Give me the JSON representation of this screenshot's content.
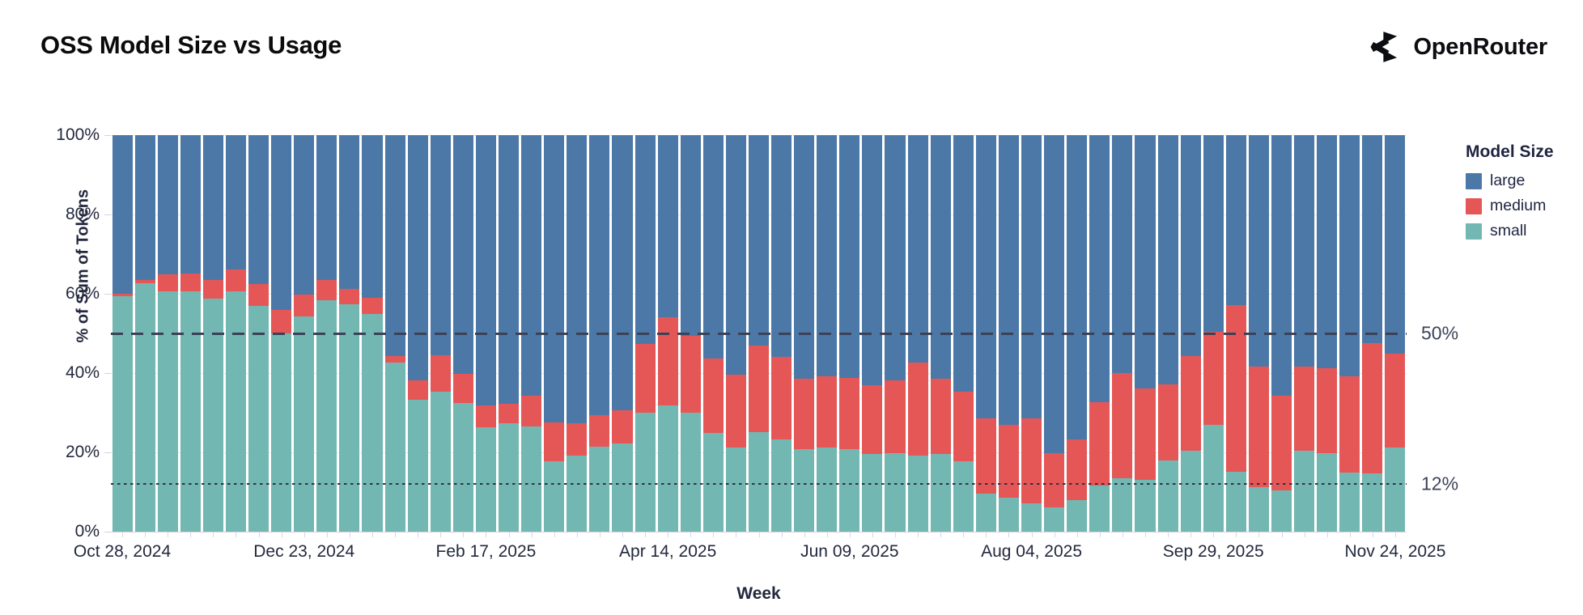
{
  "header": {
    "title": "OSS Model Size vs Usage",
    "brand": "OpenRouter"
  },
  "chart_data": {
    "type": "bar",
    "stacked": true,
    "normalized": true,
    "title": "OSS Model Size vs Usage",
    "xlabel": "Week",
    "ylabel": "% of Sum of Tokens",
    "ylim": [
      0,
      100
    ],
    "grid": true,
    "y_tick_values": [
      0,
      20,
      40,
      60,
      80,
      100
    ],
    "y_tick_labels": [
      "0%",
      "20%",
      "40%",
      "60%",
      "80%",
      "100%"
    ],
    "x_tick_indices": [
      0,
      8,
      16,
      24,
      32,
      40,
      48,
      56
    ],
    "x_tick_labels": [
      "Oct 28, 2024",
      "Dec 23, 2024",
      "Feb 17, 2025",
      "Apr 14, 2025",
      "Jun 09, 2025",
      "Aug 04, 2025",
      "Sep 29, 2025",
      "Nov 24, 2025"
    ],
    "legend": {
      "title": "Model Size",
      "position": "right",
      "items": [
        {
          "label": "large",
          "color": "#4c78a8"
        },
        {
          "label": "medium",
          "color": "#e45756"
        },
        {
          "label": "small",
          "color": "#72b7b2"
        }
      ]
    },
    "reference_lines": [
      {
        "value": 50,
        "label": "50%",
        "style": "dashed",
        "color": "#3c4157"
      },
      {
        "value": 12,
        "label": "12%",
        "style": "dotted",
        "color": "#2e3349"
      }
    ],
    "weeks": [
      "Oct 28, 2024",
      "Nov 04, 2024",
      "Nov 11, 2024",
      "Nov 18, 2024",
      "Nov 25, 2024",
      "Dec 02, 2024",
      "Dec 09, 2024",
      "Dec 16, 2024",
      "Dec 23, 2024",
      "Dec 30, 2024",
      "Jan 06, 2025",
      "Jan 13, 2025",
      "Jan 20, 2025",
      "Jan 27, 2025",
      "Feb 03, 2025",
      "Feb 10, 2025",
      "Feb 17, 2025",
      "Feb 24, 2025",
      "Mar 03, 2025",
      "Mar 10, 2025",
      "Mar 17, 2025",
      "Mar 24, 2025",
      "Mar 31, 2025",
      "Apr 07, 2025",
      "Apr 14, 2025",
      "Apr 21, 2025",
      "Apr 28, 2025",
      "May 05, 2025",
      "May 12, 2025",
      "May 19, 2025",
      "May 26, 2025",
      "Jun 02, 2025",
      "Jun 09, 2025",
      "Jun 16, 2025",
      "Jun 23, 2025",
      "Jun 30, 2025",
      "Jul 07, 2025",
      "Jul 14, 2025",
      "Jul 21, 2025",
      "Jul 28, 2025",
      "Aug 04, 2025",
      "Aug 11, 2025",
      "Aug 18, 2025",
      "Aug 25, 2025",
      "Sep 01, 2025",
      "Sep 08, 2025",
      "Sep 15, 2025",
      "Sep 22, 2025",
      "Sep 29, 2025",
      "Oct 06, 2025",
      "Oct 13, 2025",
      "Oct 20, 2025",
      "Oct 27, 2025",
      "Nov 03, 2025",
      "Nov 10, 2025",
      "Nov 17, 2025",
      "Nov 24, 2025"
    ],
    "series": [
      {
        "name": "small",
        "color": "#72b7b2",
        "values": [
          59.3,
          62.7,
          60.7,
          60.7,
          58.7,
          60.6,
          57.0,
          50.0,
          54.3,
          58.4,
          57.3,
          54.8,
          42.6,
          33.2,
          35.4,
          32.5,
          26.4,
          27.3,
          26.6,
          17.8,
          19.1,
          21.5,
          22.2,
          30.0,
          31.8,
          30.0,
          24.9,
          21.3,
          25.2,
          23.3,
          20.8,
          21.3,
          20.8,
          19.5,
          19.8,
          19.1,
          19.5,
          17.8,
          9.6,
          8.6,
          7.2,
          6.2,
          7.9,
          11.6,
          13.5,
          13.0,
          17.9,
          20.5,
          26.9,
          15.2,
          11.3,
          10.5,
          20.5,
          19.8,
          15.0,
          14.7,
          21.2
        ]
      },
      {
        "name": "medium",
        "color": "#e45756",
        "values": [
          0.8,
          0.8,
          4.3,
          4.5,
          4.8,
          5.6,
          5.5,
          6.0,
          5.6,
          5.1,
          4.0,
          4.1,
          1.7,
          5.0,
          9.0,
          7.2,
          5.4,
          5.0,
          7.7,
          9.8,
          8.2,
          7.8,
          8.5,
          17.3,
          22.2,
          19.4,
          18.7,
          18.2,
          21.8,
          20.7,
          17.8,
          17.9,
          18.0,
          17.5,
          18.4,
          23.5,
          19.0,
          17.6,
          19.0,
          18.4,
          21.4,
          13.6,
          15.3,
          21.1,
          26.5,
          23.1,
          19.2,
          23.8,
          23.5,
          42.0,
          30.4,
          23.7,
          21.1,
          21.4,
          24.2,
          32.9,
          23.8
        ]
      },
      {
        "name": "large",
        "color": "#4c78a8",
        "values": [
          39.9,
          36.5,
          35.0,
          34.8,
          36.5,
          33.8,
          37.5,
          44.0,
          40.1,
          36.5,
          38.7,
          41.1,
          55.7,
          61.8,
          55.6,
          60.3,
          68.2,
          67.7,
          65.7,
          72.4,
          72.7,
          70.7,
          69.3,
          52.7,
          46.0,
          50.6,
          56.4,
          60.5,
          53.0,
          56.0,
          61.4,
          60.8,
          61.2,
          63.0,
          61.8,
          57.4,
          61.5,
          64.6,
          71.4,
          73.0,
          71.4,
          80.2,
          76.8,
          67.3,
          60.0,
          63.9,
          62.9,
          55.7,
          49.6,
          42.8,
          58.3,
          65.8,
          58.4,
          58.8,
          60.8,
          52.4,
          55.0
        ]
      }
    ]
  }
}
